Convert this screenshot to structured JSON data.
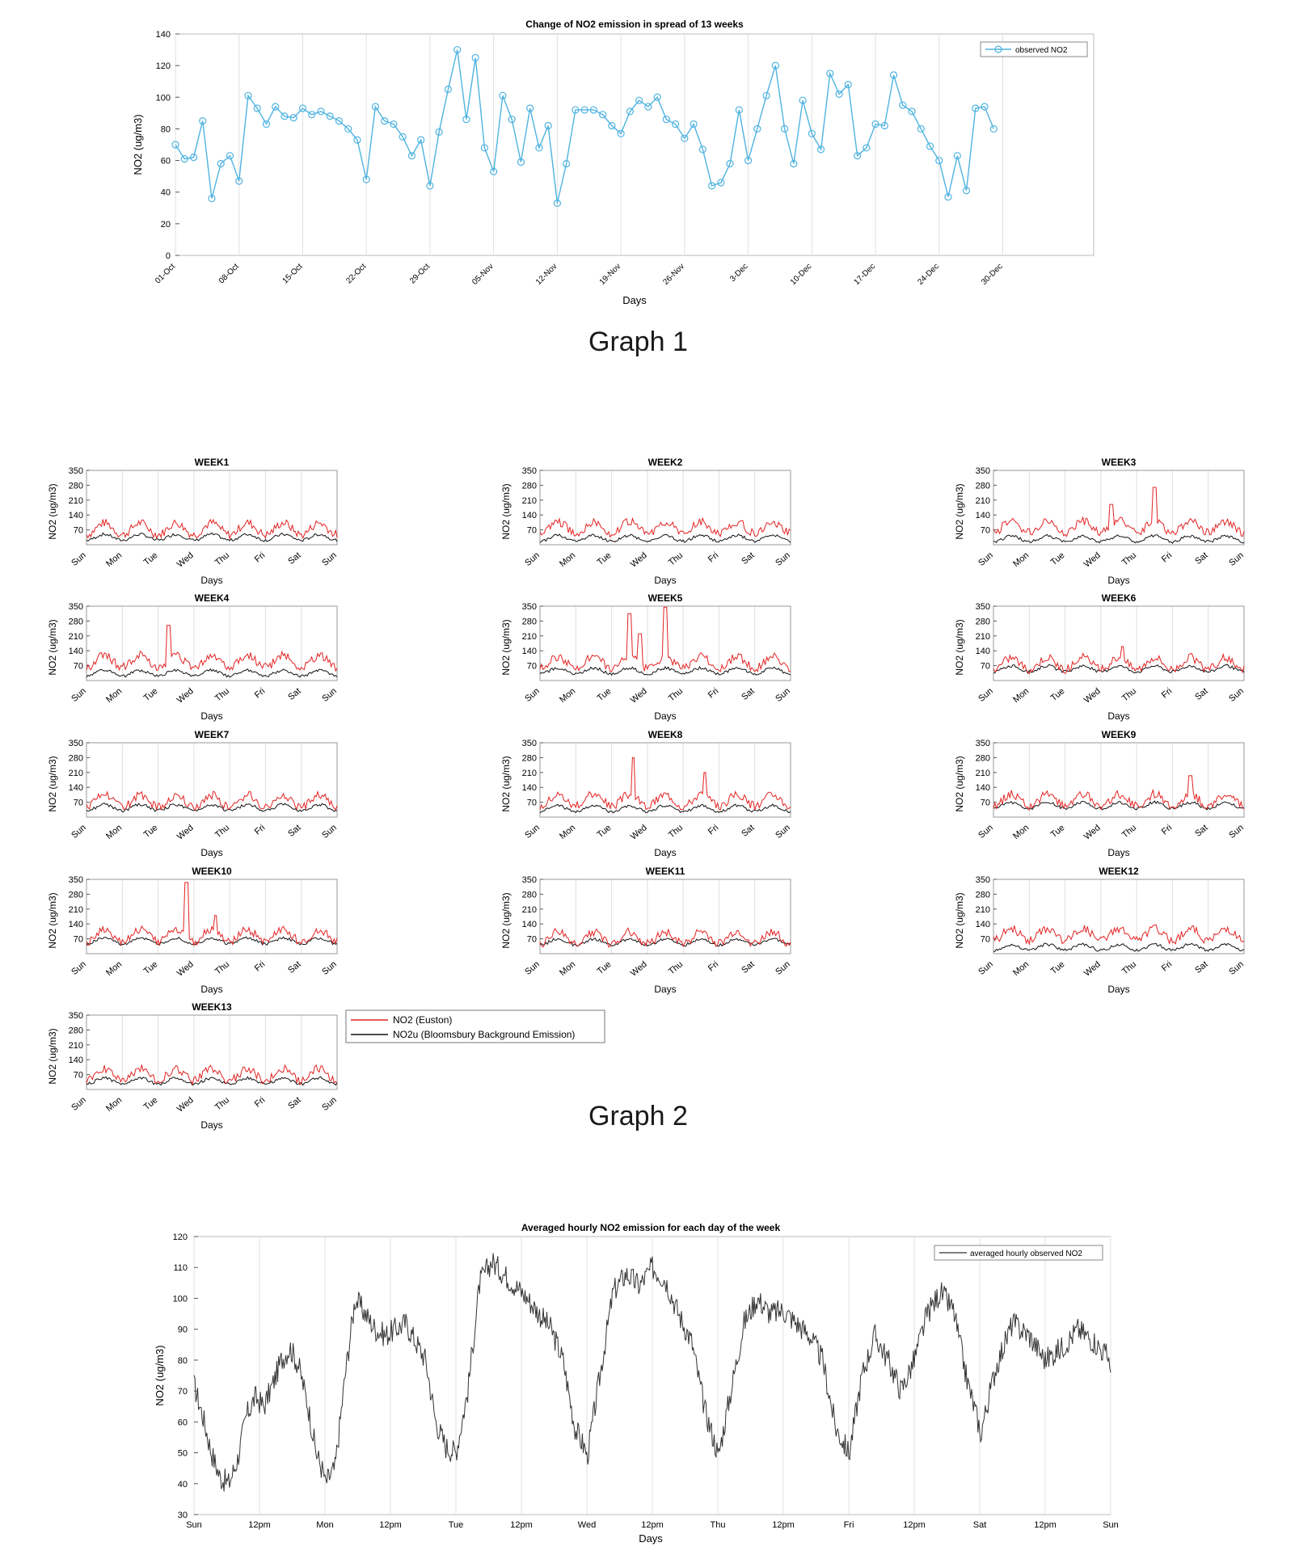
{
  "captions": {
    "graph1": "Graph 1",
    "graph2": "Graph 2"
  },
  "colors": {
    "obs": "#4fb3e0",
    "euston": "#e32222",
    "bloomsbury": "#111111",
    "avg": "#333333",
    "grid": "#e0e0e0",
    "axis": "#555555"
  },
  "chart_data": [
    {
      "id": "graph1",
      "type": "line",
      "title": "Change of NO2 emission in spread of 13 weeks",
      "xlabel": "Days",
      "ylabel": "NO2 (ug/m3)",
      "ylim": [
        0,
        140
      ],
      "yticks": [
        0,
        20,
        40,
        60,
        80,
        100,
        120,
        140
      ],
      "xlim": [
        0,
        101
      ],
      "xtick_labels": [
        "01-Oct",
        "08-Oct",
        "15-Oct",
        "22-Oct",
        "29-Oct",
        "05-Nov",
        "12-Nov",
        "19-Nov",
        "26-Nov",
        "3-Dec",
        "10-Dec",
        "17-Dec",
        "24-Dec",
        "30-Dec"
      ],
      "xtick_days": [
        0,
        7,
        14,
        21,
        28,
        35,
        42,
        49,
        56,
        63,
        70,
        77,
        84,
        91
      ],
      "legend": "observed NO2",
      "legend_position": "top-right",
      "values": [
        70,
        61,
        62,
        85,
        36,
        58,
        63,
        47,
        101,
        93,
        83,
        94,
        88,
        87,
        93,
        89,
        91,
        88,
        85,
        80,
        73,
        48,
        94,
        85,
        83,
        75,
        63,
        73,
        44,
        78,
        105,
        130,
        86,
        125,
        68,
        53,
        101,
        86,
        59,
        93,
        68,
        82,
        33,
        58,
        92,
        92,
        92,
        89,
        82,
        77,
        91,
        98,
        94,
        100,
        86,
        83,
        74,
        83,
        67,
        44,
        46,
        58,
        92,
        60,
        80,
        101,
        120,
        80,
        58,
        98,
        77,
        67,
        115,
        102,
        108,
        63,
        68,
        83,
        82,
        114,
        95,
        91,
        80,
        69,
        60,
        37,
        63,
        41,
        93,
        94,
        80
      ]
    },
    {
      "id": "graph2",
      "type": "line",
      "panels": [
        "WEEK1",
        "WEEK2",
        "WEEK3",
        "WEEK4",
        "WEEK5",
        "WEEK6",
        "WEEK7",
        "WEEK8",
        "WEEK9",
        "WEEK10",
        "WEEK11",
        "WEEK12",
        "WEEK13"
      ],
      "xlabel": "Days",
      "ylabel": "NO2 (ug/m3)",
      "ylim": [
        0,
        350
      ],
      "yticks": [
        70,
        140,
        210,
        280,
        350
      ],
      "xtick_labels": [
        "Sun",
        "Mon",
        "Tue",
        "Wed",
        "Thu",
        "Fri",
        "Sat",
        "Sun"
      ],
      "series": [
        {
          "name": "NO2 (Euston)",
          "color": "red",
          "baseline": [
            75,
            80,
            85,
            90,
            85,
            80,
            75,
            80,
            80,
            85,
            75,
            90,
            70
          ],
          "spikes": [
            [],
            [],
            [
              [
                4.5,
                270
              ],
              [
                3.3,
                190
              ]
            ],
            [
              [
                2.3,
                260
              ]
            ],
            [
              [
                2.5,
                315
              ],
              [
                3.5,
                345
              ],
              [
                2.8,
                220
              ]
            ],
            [
              [
                3.6,
                160
              ]
            ],
            [],
            [
              [
                2.6,
                280
              ],
              [
                4.6,
                210
              ]
            ],
            [
              [
                5.5,
                195
              ]
            ],
            [
              [
                2.8,
                335
              ],
              [
                3.6,
                180
              ]
            ],
            [],
            [],
            []
          ]
        },
        {
          "name": "NO2u (Bloomsbury Background Emission)",
          "color": "black",
          "baseline": [
            35,
            30,
            28,
            35,
            45,
            55,
            45,
            40,
            55,
            60,
            55,
            30,
            40
          ]
        }
      ],
      "legend_position": "right of WEEK13"
    },
    {
      "id": "graph3",
      "type": "line",
      "title": "Averaged hourly NO2 emission for each day of the week",
      "xlabel": "Days",
      "ylabel": "NO2 (ug/m3)",
      "ylim": [
        30,
        120
      ],
      "yticks": [
        30,
        40,
        50,
        60,
        70,
        80,
        90,
        100,
        110,
        120
      ],
      "xtick_labels": [
        "Sun",
        "12pm",
        "Mon",
        "12pm",
        "Tue",
        "12pm",
        "Wed",
        "12pm",
        "Thu",
        "12pm",
        "Fri",
        "12pm",
        "Sat",
        "12pm",
        "Sun"
      ],
      "legend": "averaged hourly observed NO2",
      "legend_position": "top-right",
      "hourly_profile_by_day": {
        "Sun": [
          72,
          62,
          50,
          42,
          40,
          48,
          62,
          68,
          65,
          72,
          80,
          84,
          78,
          66,
          50,
          42
        ],
        "Mon": [
          40,
          45,
          75,
          100,
          95,
          90,
          88,
          90,
          92,
          86,
          80,
          60,
          52,
          50
        ],
        "Tue": [
          50,
          70,
          105,
          112,
          108,
          104,
          100,
          95,
          90,
          80,
          58,
          50
        ],
        "Wed": [
          48,
          75,
          102,
          108,
          104,
          110,
          106,
          95,
          86,
          64,
          50
        ],
        "Thu": [
          48,
          70,
          92,
          100,
          95,
          96,
          92,
          88,
          80,
          58,
          50
        ],
        "Fri": [
          49,
          75,
          88,
          80,
          70,
          80,
          95,
          102,
          96,
          74,
          58
        ],
        "Sat": [
          55,
          78,
          92,
          88,
          80,
          84,
          90,
          86,
          80
        ]
      }
    }
  ]
}
